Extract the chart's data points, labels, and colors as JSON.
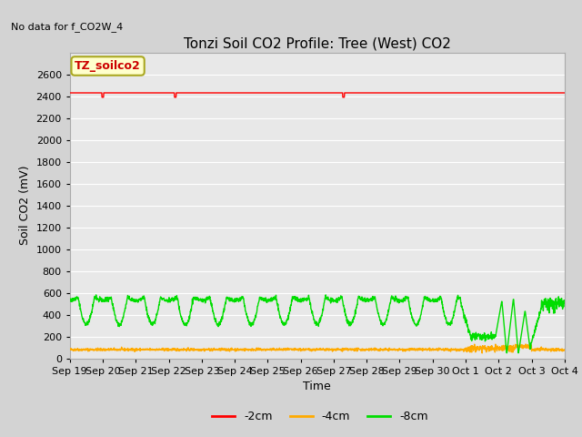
{
  "title": "Tonzi Soil CO2 Profile: Tree (West) CO2",
  "no_data_text": "No data for f_CO2W_4",
  "xlabel": "Time",
  "ylabel": "Soil CO2 (mV)",
  "ylim": [
    0,
    2800
  ],
  "yticks": [
    0,
    200,
    400,
    600,
    800,
    1000,
    1200,
    1400,
    1600,
    1800,
    2000,
    2200,
    2400,
    2600
  ],
  "fig_bg": "#d3d3d3",
  "plot_bg": "#e8e8e8",
  "grid_color": "#ffffff",
  "legend_label": "TZ_soilco2",
  "legend_bg": "#ffffcc",
  "legend_border": "#aaa820",
  "series_2cm": {
    "color": "#ff0000",
    "label": "-2cm",
    "value": 2430
  },
  "series_4cm": {
    "color": "#ffaa00",
    "label": "-4cm",
    "base": 80
  },
  "series_8cm": {
    "color": "#00dd00",
    "label": "-8cm",
    "peak": 560,
    "trough_min": 290,
    "trough_max": 340
  },
  "x_start": 0,
  "x_end": 15.0,
  "xtick_positions": [
    0,
    1,
    2,
    3,
    4,
    5,
    6,
    7,
    8,
    9,
    10,
    11,
    12,
    13,
    14,
    15
  ],
  "xtick_labels": [
    "Sep 19",
    "Sep 20",
    "Sep 21",
    "Sep 22",
    "Sep 23",
    "Sep 24",
    "Sep 25",
    "Sep 26",
    "Sep 27",
    "Sep 28",
    "Sep 29",
    "Sep 30",
    "Oct 1",
    "Oct 2",
    "Oct 3",
    "Oct 4"
  ],
  "title_fontsize": 11,
  "axis_fontsize": 9,
  "tick_fontsize": 8
}
